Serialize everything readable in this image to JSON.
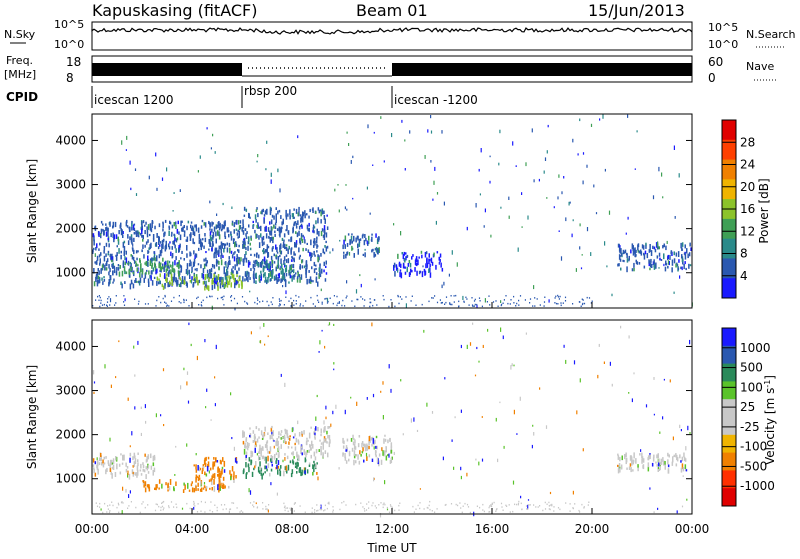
{
  "header": {
    "station": "Kapuskasing (fitACF)",
    "beam": "Beam 01",
    "date": "15/Jun/2013"
  },
  "sky_panel": {
    "left_label": "N.Sky",
    "right_label": "N.Search",
    "y_ticks": [
      "10^5",
      "10^0"
    ],
    "right_ticks": [
      "10^5",
      "10^0"
    ]
  },
  "freq_panel": {
    "left_label_1": "Freq.",
    "left_label_2": "[MHz]",
    "right_label": "Nave",
    "y_ticks": [
      "18",
      "8"
    ],
    "right_ticks": [
      "60",
      "0"
    ]
  },
  "cpid_panel": {
    "label": "CPID",
    "segments": [
      {
        "name": "icescan 1200",
        "start": 0,
        "end": 6
      },
      {
        "name": "rbsp 200",
        "start": 6,
        "end": 12
      },
      {
        "name": "icescan -1200",
        "start": 12,
        "end": 24
      }
    ]
  },
  "x_axis": {
    "label": "Time UT",
    "ticks": [
      "00:00",
      "04:00",
      "08:00",
      "12:00",
      "16:00",
      "20:00",
      "00:00"
    ],
    "tick_hours": [
      0,
      4,
      8,
      12,
      16,
      20,
      24
    ]
  },
  "power_panel": {
    "ylabel": "Slant Range [km]",
    "y_ticks": [
      1000,
      2000,
      3000,
      4000
    ],
    "colorbar_label": "Power [dB]",
    "colorbar_ticks": [
      "4",
      "8",
      "12",
      "16",
      "20",
      "24",
      "28"
    ],
    "colors": [
      "#1a1aff",
      "#2a58b0",
      "#2a8a8a",
      "#3f9f55",
      "#8cc32a",
      "#f0b400",
      "#f08000",
      "#ff4000",
      "#e00000"
    ]
  },
  "velocity_panel": {
    "ylabel": "Slant Range [km]",
    "y_ticks": [
      1000,
      2000,
      3000,
      4000
    ],
    "colorbar_label": "Velocity [m s^-1]",
    "colorbar_ticks": [
      "1000",
      "500",
      "100",
      "25",
      "-25",
      "-100",
      "-500",
      "-1000"
    ],
    "colors": [
      "#1a1aff",
      "#2a58b0",
      "#2a8a5a",
      "#5ac32a",
      "#c8c8c8",
      "#c8c8c8",
      "#f0b400",
      "#f08000",
      "#ff3000",
      "#e00000"
    ]
  },
  "chart_data": {
    "type": "heatmap",
    "x_range_hours": [
      0,
      24
    ],
    "y_range_km": [
      200,
      4600
    ],
    "power_regions": [
      {
        "t0": 0.0,
        "t1": 6.0,
        "r0": 750,
        "r1": 2200,
        "level": "8"
      },
      {
        "t0": 2.5,
        "t1": 6.0,
        "r0": 700,
        "r1": 1000,
        "level": "20"
      },
      {
        "t0": 1.0,
        "t1": 3.5,
        "r0": 1000,
        "r1": 1300,
        "level": "16"
      },
      {
        "t0": 6.0,
        "t1": 9.4,
        "r0": 800,
        "r1": 2500,
        "level": "8"
      },
      {
        "t0": 6.5,
        "t1": 8.0,
        "r0": 900,
        "r1": 1300,
        "level": "12"
      },
      {
        "t0": 10.0,
        "t1": 11.5,
        "r0": 1400,
        "r1": 1900,
        "level": "8"
      },
      {
        "t0": 12.0,
        "t1": 14.0,
        "r0": 1000,
        "r1": 1500,
        "level": "4"
      },
      {
        "t0": 21.0,
        "t1": 24.0,
        "r0": 1100,
        "r1": 1700,
        "level": "8"
      }
    ],
    "velocity_regions": [
      {
        "t0": 0.0,
        "t1": 2.5,
        "r0": 1100,
        "r1": 1600,
        "level": "-25 to 25"
      },
      {
        "t0": 2.0,
        "t1": 5.5,
        "r0": 750,
        "r1": 1000,
        "level": "-100"
      },
      {
        "t0": 4.0,
        "t1": 5.8,
        "r0": 1000,
        "r1": 1500,
        "level": "-100"
      },
      {
        "t0": 6.0,
        "t1": 9.0,
        "r0": 1100,
        "r1": 1500,
        "level": "100"
      },
      {
        "t0": 6.0,
        "t1": 9.5,
        "r0": 1500,
        "r1": 2200,
        "level": "-25 to 25"
      },
      {
        "t0": 10.0,
        "t1": 12.0,
        "r0": 1400,
        "r1": 2000,
        "level": "-25 to 25"
      },
      {
        "t0": 21.0,
        "t1": 24.0,
        "r0": 1200,
        "r1": 1600,
        "level": "-25 to 25"
      }
    ]
  }
}
